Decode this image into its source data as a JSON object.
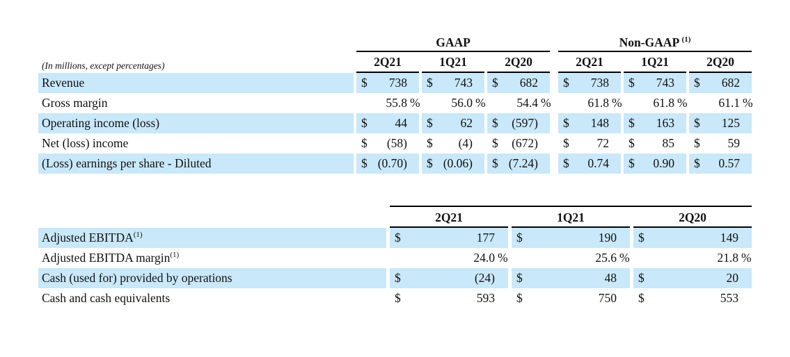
{
  "note": "(In millions, except percentages)",
  "colors": {
    "row_highlight": "#C9E8F9",
    "rule": "#000000"
  },
  "table1": {
    "group1": "GAAP",
    "group2": "Non-GAAP",
    "group2_sup": "(1)",
    "quarters": [
      "2Q21",
      "1Q21",
      "2Q20",
      "2Q21",
      "1Q21",
      "2Q20"
    ],
    "rows": [
      {
        "label": "Revenue",
        "cells": [
          {
            "d": "$",
            "v": "738",
            "s": ""
          },
          {
            "d": "$",
            "v": "743",
            "s": ""
          },
          {
            "d": "$",
            "v": "682",
            "s": ""
          },
          {
            "d": "$",
            "v": "738",
            "s": ""
          },
          {
            "d": "$",
            "v": "743",
            "s": ""
          },
          {
            "d": "$",
            "v": "682",
            "s": ""
          }
        ]
      },
      {
        "label": "Gross margin",
        "cells": [
          {
            "d": "",
            "v": "55.8",
            "s": "%"
          },
          {
            "d": "",
            "v": "56.0",
            "s": "%"
          },
          {
            "d": "",
            "v": "54.4",
            "s": "%"
          },
          {
            "d": "",
            "v": "61.8",
            "s": "%"
          },
          {
            "d": "",
            "v": "61.8",
            "s": "%"
          },
          {
            "d": "",
            "v": "61.1",
            "s": "%"
          }
        ]
      },
      {
        "label": "Operating income (loss)",
        "cells": [
          {
            "d": "$",
            "v": "44",
            "s": ""
          },
          {
            "d": "$",
            "v": "62",
            "s": ""
          },
          {
            "d": "$",
            "v": "(597)",
            "s": ""
          },
          {
            "d": "$",
            "v": "148",
            "s": ""
          },
          {
            "d": "$",
            "v": "163",
            "s": ""
          },
          {
            "d": "$",
            "v": "125",
            "s": ""
          }
        ]
      },
      {
        "label": "Net (loss) income",
        "cells": [
          {
            "d": "$",
            "v": "(58)",
            "s": ""
          },
          {
            "d": "$",
            "v": "(4)",
            "s": ""
          },
          {
            "d": "$",
            "v": "(672)",
            "s": ""
          },
          {
            "d": "$",
            "v": "72",
            "s": ""
          },
          {
            "d": "$",
            "v": "85",
            "s": ""
          },
          {
            "d": "$",
            "v": "59",
            "s": ""
          }
        ]
      },
      {
        "label": "(Loss) earnings per share - Diluted",
        "cells": [
          {
            "d": "$",
            "v": "(0.70)",
            "s": ""
          },
          {
            "d": "$",
            "v": "(0.06)",
            "s": ""
          },
          {
            "d": "$",
            "v": "(7.24)",
            "s": ""
          },
          {
            "d": "$",
            "v": "0.74",
            "s": ""
          },
          {
            "d": "$",
            "v": "0.90",
            "s": ""
          },
          {
            "d": "$",
            "v": "0.57",
            "s": ""
          }
        ]
      }
    ]
  },
  "table2": {
    "quarters": [
      "2Q21",
      "1Q21",
      "2Q20"
    ],
    "rows": [
      {
        "label": "Adjusted EBITDA",
        "sup": "(1)",
        "cells": [
          {
            "d": "$",
            "v": "177",
            "s": ""
          },
          {
            "d": "$",
            "v": "190",
            "s": ""
          },
          {
            "d": "$",
            "v": "149",
            "s": ""
          }
        ]
      },
      {
        "label": "Adjusted EBITDA margin",
        "sup": "(1)",
        "cells": [
          {
            "d": "",
            "v": "24.0",
            "s": "%"
          },
          {
            "d": "",
            "v": "25.6",
            "s": "%"
          },
          {
            "d": "",
            "v": "21.8",
            "s": "%"
          }
        ]
      },
      {
        "label": "Cash (used for) provided by operations",
        "cells": [
          {
            "d": "$",
            "v": "(24)",
            "s": ""
          },
          {
            "d": "$",
            "v": "48",
            "s": ""
          },
          {
            "d": "$",
            "v": "20",
            "s": ""
          }
        ]
      },
      {
        "label": "Cash and cash equivalents",
        "cells": [
          {
            "d": "$",
            "v": "593",
            "s": ""
          },
          {
            "d": "$",
            "v": "750",
            "s": ""
          },
          {
            "d": "$",
            "v": "553",
            "s": ""
          }
        ]
      }
    ]
  }
}
